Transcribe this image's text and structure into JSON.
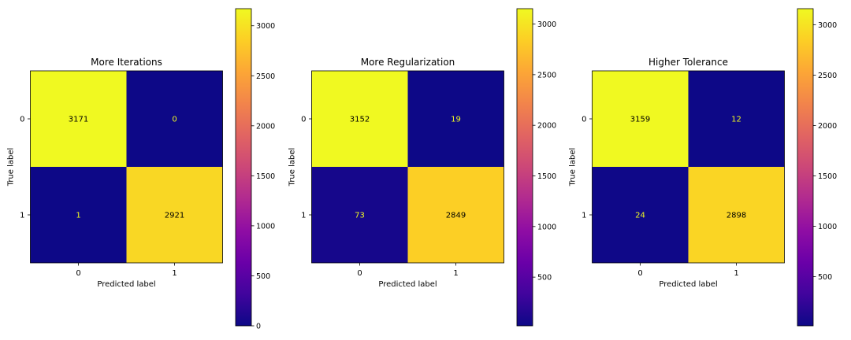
{
  "chart_data": [
    {
      "type": "heatmap",
      "title": "More Iterations",
      "xlabel": "Predicted label",
      "ylabel": "True label",
      "x_ticks": [
        "0",
        "1"
      ],
      "y_ticks": [
        "0",
        "1"
      ],
      "matrix": [
        [
          3171,
          0
        ],
        [
          1,
          2921
        ]
      ],
      "colorbar": {
        "range": [
          0,
          3171
        ],
        "ticks": [
          0,
          500,
          1000,
          1500,
          2000,
          2500,
          3000
        ],
        "colormap": "plasma"
      }
    },
    {
      "type": "heatmap",
      "title": "More Regularization",
      "xlabel": "Predicted label",
      "ylabel": "True label",
      "x_ticks": [
        "0",
        "1"
      ],
      "y_ticks": [
        "0",
        "1"
      ],
      "matrix": [
        [
          3152,
          19
        ],
        [
          73,
          2849
        ]
      ],
      "colorbar": {
        "range": [
          19,
          3152
        ],
        "ticks": [
          500,
          1000,
          1500,
          2000,
          2500,
          3000
        ],
        "colormap": "plasma"
      }
    },
    {
      "type": "heatmap",
      "title": "Higher Tolerance",
      "xlabel": "Predicted label",
      "ylabel": "True label",
      "x_ticks": [
        "0",
        "1"
      ],
      "y_ticks": [
        "0",
        "1"
      ],
      "matrix": [
        [
          3159,
          12
        ],
        [
          24,
          2898
        ]
      ],
      "colorbar": {
        "range": [
          12,
          3159
        ],
        "ticks": [
          500,
          1000,
          1500,
          2000,
          2500,
          3000
        ],
        "colormap": "plasma"
      }
    }
  ],
  "colors": {
    "text_on_dark": "#f0f921",
    "text_on_light": "#000000",
    "plasma_stops": [
      "#0d0887",
      "#41049d",
      "#6a00a8",
      "#8f0da4",
      "#b12a90",
      "#cc4778",
      "#e16462",
      "#f2844b",
      "#fca636",
      "#fcce25",
      "#f0f921"
    ]
  }
}
